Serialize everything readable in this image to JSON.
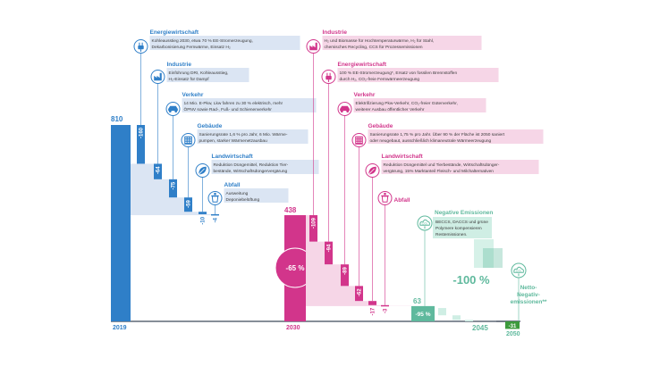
{
  "chart_data": {
    "type": "waterfall",
    "years": {
      "y2019": "2019",
      "y2030": "2030",
      "y2045": "2045",
      "y2050": "2050"
    },
    "start_value": 810,
    "value_2030": 438,
    "value_2045": 63,
    "value_2050": -31,
    "start_label": "810",
    "label_2030": "438",
    "label_2045": "63",
    "label_2050": "-31",
    "phase1": [
      {
        "sector": "Energiewirtschaft",
        "delta": -160,
        "label": "-160",
        "desc1": "Kohleausstieg 2030, etwa 70 % EE-Stromerzeugung,",
        "desc2": "Dekarbonisierung Fernwärme, Einsatz H₂",
        "icon": "plug-icon"
      },
      {
        "sector": "Industrie",
        "delta": -64,
        "label": "-64",
        "desc1": "Einführung DRI, Kohleausstieg,",
        "desc2": "H₂-Einsatz für Dampf",
        "icon": "factory-icon"
      },
      {
        "sector": "Verkehr",
        "delta": -75,
        "label": "-75",
        "desc1": "14 Mio. E-Pkw, Lkw fahren zu 30 % elektrisch, mehr",
        "desc2": "ÖPNV sowie Rad-, Fuß- und Schienenverkehr",
        "icon": "car-icon"
      },
      {
        "sector": "Gebäude",
        "delta": -59,
        "label": "-59",
        "desc1": "Sanierungsrate 1,6 % pro Jahr, 6 Mio. Wärme-",
        "desc2": "pumpen, starker Wärmenetzausbau",
        "icon": "building-icon"
      },
      {
        "sector": "Landwirtschaft",
        "delta": -10,
        "label": "-10",
        "desc1": "Reduktion Düngemittel, Reduktion Tier-",
        "desc2": "bestände, Wirtschaftsdüngervergärung",
        "icon": "leaf-icon"
      },
      {
        "sector": "Abfall",
        "delta": -4,
        "label": "-4",
        "desc1": "Ausweitung",
        "desc2": "Deponiebelüftung",
        "icon": "waste-icon"
      }
    ],
    "phase2": [
      {
        "sector": "Industrie",
        "delta": -109,
        "label": "-109",
        "desc1": "H₂ und Biomasse für Hochtemperaturwärme, H₂ für Stahl,",
        "desc2": "chemisches Recycling, CCS für Prozessemissionen",
        "icon": "factory-icon"
      },
      {
        "sector": "Energiewirtschaft",
        "delta": -94,
        "label": "-94",
        "desc1": "100 % EE-Stromerzeugung*, Ersatz von fossilen Brennstoffen",
        "desc2": "durch H₂, CO₂-freie Fernwärmeerzeugung",
        "icon": "plug-icon"
      },
      {
        "sector": "Verkehr",
        "delta": -89,
        "label": "-89",
        "desc1": "Elektrifizierung Pkw-Verkehr, CO₂-freier Güterverkehr,",
        "desc2": "weiterer Ausbau öffentlicher Verkehr",
        "icon": "car-icon"
      },
      {
        "sector": "Gebäude",
        "delta": -62,
        "label": "-62",
        "desc1": "Sanierungsrate 1,75 % pro Jahr. Über 90 % der Fläche ist 2050 saniert",
        "desc2": "oder neugebaut, ausschließlich klimaneutrale Wärmeerzeugung",
        "icon": "building-icon"
      },
      {
        "sector": "Landwirtschaft",
        "delta": -17,
        "label": "-17",
        "desc1": "Reduktion Düngemittel und Tierbestände, Wirtschaftsdünger-",
        "desc2": "vergärung, 15% Marktanteil Fleisch- und Milchalternativen",
        "icon": "leaf-icon"
      },
      {
        "sector": "Abfall",
        "delta": -3,
        "label": "-3",
        "desc1": "",
        "desc2": "",
        "icon": "waste-icon"
      }
    ],
    "phase3": {
      "sector": "Negative Emissionen",
      "desc1": "BECCS, DACCS und grüne",
      "desc2": "Polymere kompensieren",
      "desc3": "Restemissionen.",
      "icon": "co2-cloud-icon"
    },
    "final": {
      "label1": "Netto-",
      "label2": "Negativ-",
      "label3": "emissionen**",
      "icon": "co2-cloud-icon"
    },
    "pct_2030": "-65 %",
    "pct_2045": "-95 %",
    "pct_100": "-100 %",
    "colors": {
      "blue": "#2f7fc8",
      "blue_light": "#dbe5f3",
      "magenta": "#d2358b",
      "magenta_light": "#f6d6e7",
      "green": "#5fb99d",
      "green_light": "#cfeee4",
      "dark_green": "#3c9a3c",
      "axis": "#3f4a5a",
      "text": "#3b3b3b"
    },
    "ylim": [
      -40,
      820
    ]
  }
}
